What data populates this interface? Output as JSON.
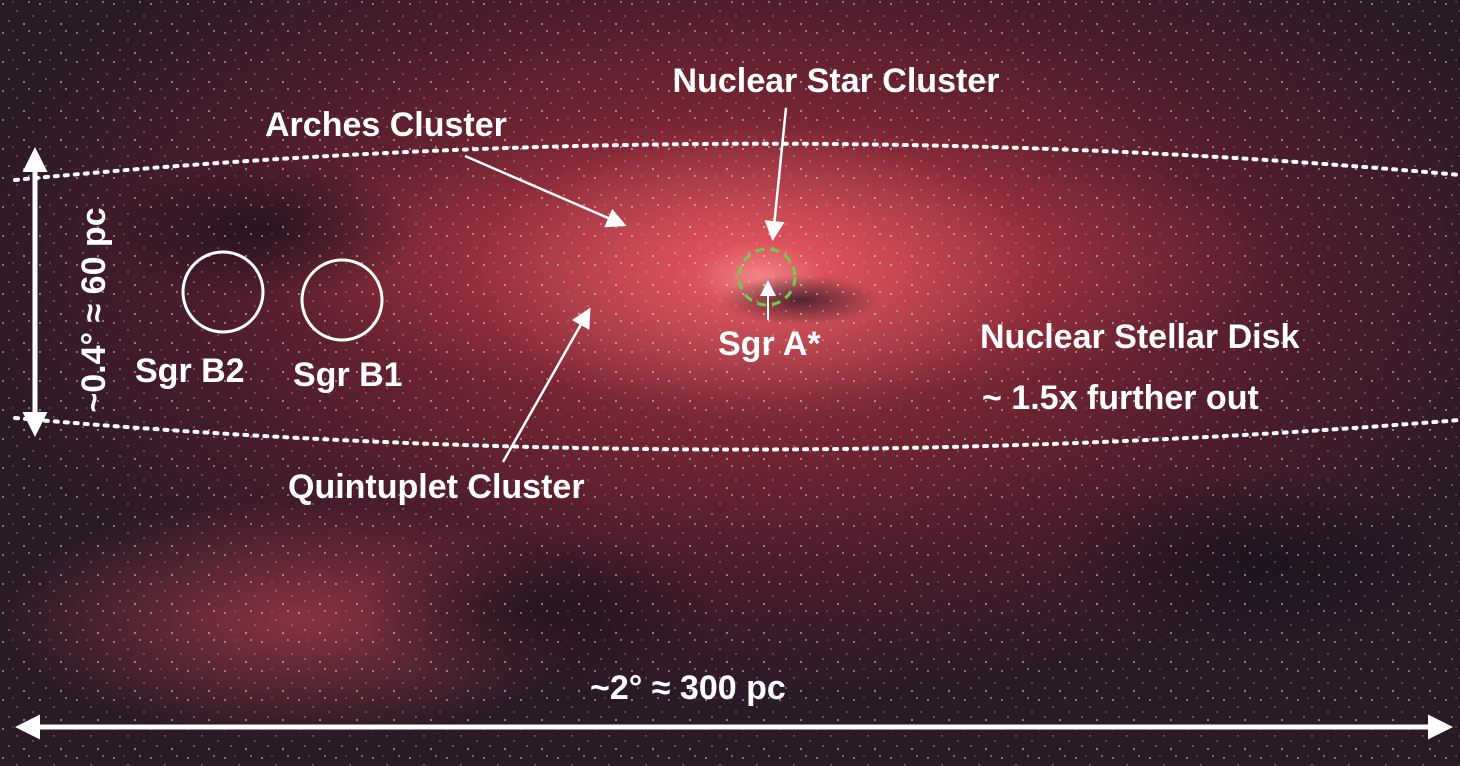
{
  "labels": {
    "nuclear_star_cluster": "Nuclear Star Cluster",
    "arches_cluster": "Arches Cluster",
    "sgr_b2": "Sgr  B2",
    "sgr_b1": "Sgr  B1",
    "sgr_a": "Sgr  A*",
    "nuclear_stellar_disk": "Nuclear Stellar Disk",
    "further_out": "~ 1.5x  further out",
    "quintuplet_cluster": "Quintuplet Cluster",
    "width_scale": "~2°  ≈  300  pc",
    "height_scale": "~0.4°  ≈  60  pc"
  }
}
